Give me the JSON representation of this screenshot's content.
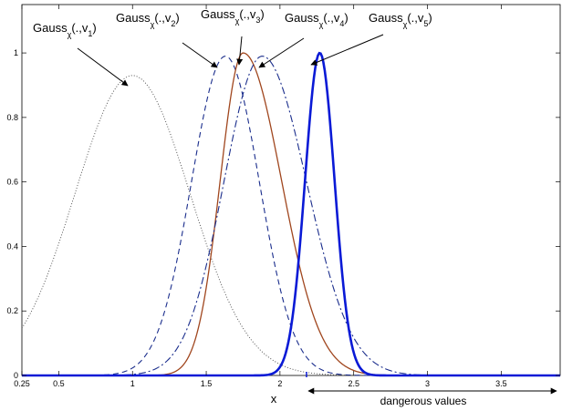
{
  "chart_data": {
    "type": "line",
    "xlabel": "x",
    "ylabel": "",
    "xlim": [
      0.25,
      3.9
    ],
    "ylim": [
      0,
      1.15
    ],
    "x_ticks": [
      {
        "value": 0.25,
        "label": "0.25"
      },
      {
        "value": 0.5,
        "label": "0.5"
      },
      {
        "value": 1,
        "label": "1"
      },
      {
        "value": 1.5,
        "label": "1.5"
      },
      {
        "value": 2,
        "label": "2"
      },
      {
        "value": 2.5,
        "label": "2.5"
      },
      {
        "value": 3,
        "label": "3"
      },
      {
        "value": 3.5,
        "label": "3.5"
      }
    ],
    "y_ticks": [
      {
        "value": 0,
        "label": "0"
      },
      {
        "value": 0.2,
        "label": "0.2"
      },
      {
        "value": 0.4,
        "label": "0.4"
      },
      {
        "value": 0.6,
        "label": "0.6"
      },
      {
        "value": 0.8,
        "label": "0.8"
      },
      {
        "value": 1,
        "label": "1"
      }
    ],
    "grid": false,
    "series": [
      {
        "label_main": "Gauss",
        "label_sub": "χ",
        "label_args": "(.,v",
        "label_index": "1",
        "label_close": ")",
        "mean": 1.0,
        "sigma_left": 0.39,
        "sigma_right": 0.39,
        "peak": 0.93,
        "color": "#444444",
        "dash": "1,2",
        "width": 0.9
      },
      {
        "label_main": "Gauss",
        "label_sub": "χ",
        "label_args": "(.,v",
        "label_index": "2",
        "label_close": ")",
        "mean": 1.63,
        "sigma_left": 0.23,
        "sigma_right": 0.23,
        "peak": 0.99,
        "color": "#1a2d8c",
        "dash": "6,4",
        "width": 1.1
      },
      {
        "label_main": "Gauss",
        "label_sub": "χ",
        "label_args": "(.,v",
        "label_index": "3",
        "label_close": ")",
        "mean": 1.75,
        "sigma_left": 0.155,
        "sigma_right": 0.26,
        "peak": 1.0,
        "color": "#a0461e",
        "dash": "",
        "width": 1.3
      },
      {
        "label_main": "Gauss",
        "label_sub": "χ",
        "label_args": "(.,v",
        "label_index": "4",
        "label_close": ")",
        "mean": 1.88,
        "sigma_left": 0.26,
        "sigma_right": 0.3,
        "peak": 0.99,
        "color": "#1a2d8c",
        "dash": "8,3,2,3",
        "width": 1.1
      },
      {
        "label_main": "Gauss",
        "label_sub": "χ",
        "label_args": "(.,v",
        "label_index": "5",
        "label_close": ")",
        "mean": 2.27,
        "sigma_left": 0.1,
        "sigma_right": 0.1,
        "peak": 1.0,
        "color": "#0a1ad6",
        "dash": "",
        "width": 2.6
      }
    ],
    "annotations": {
      "range_label": "dangerous values",
      "range_start": 2.18,
      "range_end": 3.9,
      "threshold_tick": 2.18
    }
  }
}
